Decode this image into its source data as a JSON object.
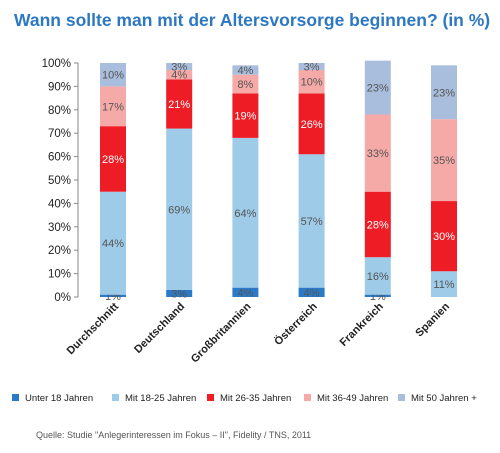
{
  "chart_data": {
    "type": "bar",
    "stacked": true,
    "title": "Wann sollte man mit der Altersvorsorge beginnen? (in %)",
    "categories": [
      "Durchschnitt",
      "Deutschland",
      "Großbritannien",
      "Österreich",
      "Frankreich",
      "Spanien"
    ],
    "series": [
      {
        "name": "Unter 18 Jahren",
        "color": "#2a7ac8",
        "values": [
          1,
          3,
          4,
          4,
          1,
          0
        ],
        "labels": [
          "1%",
          "3%",
          "4%",
          "4%",
          "1%",
          ""
        ]
      },
      {
        "name": "Mit 18-25 Jahren",
        "color": "#9ecbe8",
        "values": [
          44,
          69,
          64,
          57,
          16,
          11
        ],
        "labels": [
          "44%",
          "69%",
          "64%",
          "57%",
          "16%",
          "11%"
        ]
      },
      {
        "name": "Mit 26-35 Jahren",
        "color": "#ee1c25",
        "values": [
          28,
          21,
          19,
          26,
          28,
          30
        ],
        "labels": [
          "28%",
          "21%",
          "19%",
          "26%",
          "28%",
          "30%"
        ]
      },
      {
        "name": "Mit 36-49 Jahren",
        "color": "#f5aaa8",
        "values": [
          17,
          4,
          8,
          10,
          33,
          35
        ],
        "labels": [
          "17%",
          "4%",
          "8%",
          "10%",
          "33%",
          "35%"
        ]
      },
      {
        "name": "Mit 50 Jahren +",
        "color": "#a9bddc",
        "values": [
          10,
          3,
          4,
          3,
          23,
          23
        ],
        "labels": [
          "10%",
          "3%",
          "4%",
          "3%",
          "23%",
          "23%"
        ]
      }
    ],
    "yticks": [
      "0%",
      "10%",
      "20%",
      "30%",
      "40%",
      "50%",
      "60%",
      "70%",
      "80%",
      "90%",
      "100%"
    ],
    "ylim": [
      0,
      100
    ],
    "legend_position": "bottom",
    "grid": false
  },
  "source": "Quelle:  Studie \"Anlegerinteressen im Fokus – II\", Fidelity / TNS, 2011"
}
